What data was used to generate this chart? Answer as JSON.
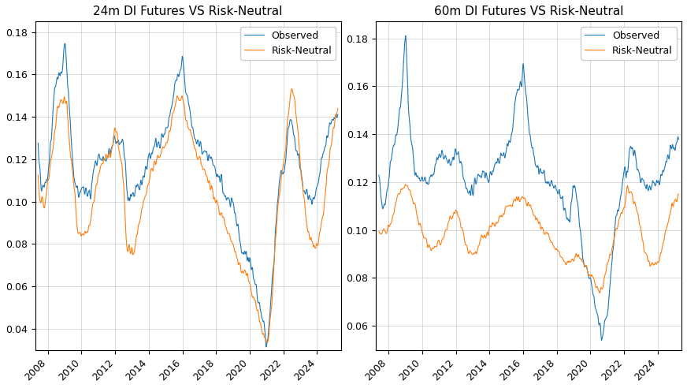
{
  "title_left": "24m DI Futures VS Risk-Neutral",
  "title_right": "60m DI Futures VS Risk-Neutral",
  "legend_observed": "Observed",
  "legend_rn": "Risk-Neutral",
  "color_observed": "#1f77b4",
  "color_rn": "#ff7f0e",
  "ylim_left": [
    0.03,
    0.185
  ],
  "ylim_right": [
    0.05,
    0.187
  ],
  "yticks_left": [
    0.04,
    0.06,
    0.08,
    0.1,
    0.12,
    0.14,
    0.16,
    0.18
  ],
  "yticks_right": [
    0.06,
    0.08,
    0.1,
    0.12,
    0.14,
    0.16,
    0.18
  ],
  "figsize": [
    8.72,
    4.92
  ],
  "dpi": 100,
  "line_width": 0.8
}
